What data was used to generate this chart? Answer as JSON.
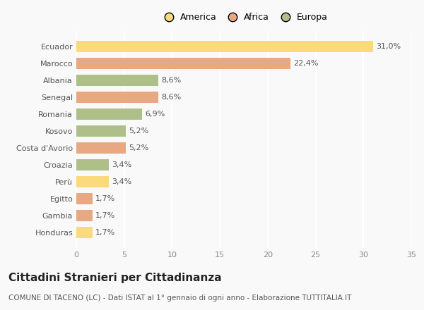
{
  "categories": [
    "Ecuador",
    "Marocco",
    "Albania",
    "Senegal",
    "Romania",
    "Kosovo",
    "Costa d'Avorio",
    "Croazia",
    "Perù",
    "Egitto",
    "Gambia",
    "Honduras"
  ],
  "values": [
    31.0,
    22.4,
    8.6,
    8.6,
    6.9,
    5.2,
    5.2,
    3.4,
    3.4,
    1.7,
    1.7,
    1.7
  ],
  "labels": [
    "31,0%",
    "22,4%",
    "8,6%",
    "8,6%",
    "6,9%",
    "5,2%",
    "5,2%",
    "3,4%",
    "3,4%",
    "1,7%",
    "1,7%",
    "1,7%"
  ],
  "colors": [
    "#FADA7A",
    "#E8A882",
    "#AEBF8A",
    "#E8A882",
    "#AEBF8A",
    "#AEBF8A",
    "#E8A882",
    "#AEBF8A",
    "#FADA7A",
    "#E8A882",
    "#E8A882",
    "#FADA7A"
  ],
  "legend_labels": [
    "America",
    "Africa",
    "Europa"
  ],
  "legend_colors": [
    "#FADA7A",
    "#E8A882",
    "#AEBF8A"
  ],
  "title": "Cittadini Stranieri per Cittadinanza",
  "subtitle": "COMUNE DI TACENO (LC) - Dati ISTAT al 1° gennaio di ogni anno - Elaborazione TUTTITALIA.IT",
  "xlim": [
    0,
    35
  ],
  "xticks": [
    0,
    5,
    10,
    15,
    20,
    25,
    30,
    35
  ],
  "background_color": "#f9f9f9",
  "grid_color": "#ffffff",
  "bar_height": 0.65,
  "title_fontsize": 11,
  "subtitle_fontsize": 7.5,
  "label_fontsize": 8,
  "tick_fontsize": 8,
  "legend_fontsize": 9
}
